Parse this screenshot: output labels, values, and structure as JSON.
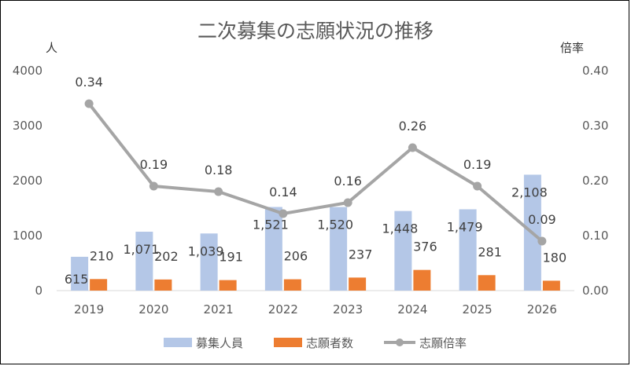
{
  "chart_data": {
    "type": "bar",
    "title": "二次募集の志願状況の推移",
    "y_left_unit": "人",
    "y_right_unit": "倍率",
    "categories": [
      "2019",
      "2020",
      "2021",
      "2022",
      "2023",
      "2024",
      "2025",
      "2026"
    ],
    "y_left_ticks": [
      "4000",
      "3000",
      "2000",
      "1000",
      "0"
    ],
    "y_right_ticks": [
      "0.40",
      "0.30",
      "0.20",
      "0.10",
      "0.00"
    ],
    "ylim_left": [
      0,
      4000
    ],
    "ylim_right": [
      0,
      0.4
    ],
    "grid": false,
    "legend_position": "bottom",
    "series": [
      {
        "name": "募集人員",
        "kind": "bar",
        "axis": "left",
        "color": "#b4c7e7",
        "values": [
          615,
          1071,
          1039,
          1521,
          1520,
          1448,
          1479,
          2108
        ],
        "labels": [
          "615",
          "1,071",
          "1,039",
          "1,521",
          "1,520",
          "1,448",
          "1,479",
          "2,108"
        ]
      },
      {
        "name": "志願者数",
        "kind": "bar",
        "axis": "left",
        "color": "#ed7d31",
        "values": [
          210,
          202,
          191,
          206,
          237,
          376,
          281,
          180
        ],
        "labels": [
          "210",
          "202",
          "191",
          "206",
          "237",
          "376",
          "281",
          "180"
        ]
      },
      {
        "name": "志願倍率",
        "kind": "line",
        "axis": "right",
        "color": "#a5a5a5",
        "values": [
          0.34,
          0.19,
          0.18,
          0.14,
          0.16,
          0.26,
          0.19,
          0.09
        ],
        "labels": [
          "0.34",
          "0.19",
          "0.18",
          "0.14",
          "0.16",
          "0.26",
          "0.19",
          "0.09"
        ]
      }
    ]
  }
}
